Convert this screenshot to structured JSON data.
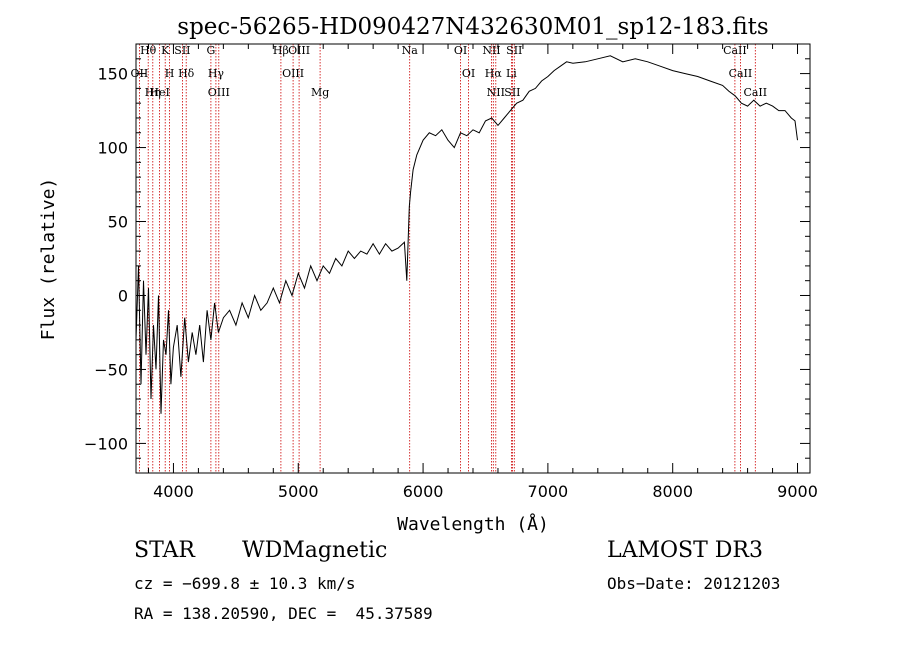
{
  "chart_data": {
    "type": "line",
    "title": "spec-56265-HD090427N432630M01_sp12-183.fits",
    "xlabel": "Wavelength (Å)",
    "ylabel": "Flux (relative)",
    "xlim": [
      3700,
      9100
    ],
    "ylim": [
      -120,
      170
    ],
    "x_ticks": [
      4000,
      5000,
      6000,
      7000,
      8000,
      9000
    ],
    "y_ticks": [
      -100,
      -50,
      0,
      50,
      100,
      150
    ],
    "series": [
      {
        "name": "flux",
        "x": [
          3700,
          3720,
          3740,
          3760,
          3780,
          3800,
          3820,
          3840,
          3860,
          3880,
          3900,
          3920,
          3940,
          3960,
          3980,
          4000,
          4030,
          4060,
          4090,
          4120,
          4150,
          4180,
          4210,
          4240,
          4270,
          4300,
          4330,
          4360,
          4400,
          4450,
          4500,
          4550,
          4600,
          4650,
          4700,
          4750,
          4800,
          4850,
          4900,
          4950,
          5000,
          5050,
          5100,
          5150,
          5200,
          5250,
          5300,
          5350,
          5400,
          5450,
          5500,
          5550,
          5600,
          5650,
          5700,
          5750,
          5800,
          5850,
          5870,
          5890,
          5900,
          5920,
          5950,
          6000,
          6050,
          6100,
          6150,
          6200,
          6250,
          6300,
          6350,
          6400,
          6450,
          6500,
          6550,
          6600,
          6650,
          6700,
          6750,
          6800,
          6850,
          6900,
          6950,
          7000,
          7050,
          7100,
          7150,
          7200,
          7300,
          7400,
          7500,
          7600,
          7700,
          7800,
          7900,
          8000,
          8100,
          8200,
          8300,
          8400,
          8450,
          8500,
          8550,
          8600,
          8650,
          8700,
          8750,
          8800,
          8850,
          8900,
          8950,
          8980,
          9000
        ],
        "values": [
          -30,
          20,
          -60,
          10,
          -40,
          5,
          -70,
          -20,
          -50,
          0,
          -80,
          -30,
          -40,
          -10,
          -60,
          -35,
          -20,
          -55,
          -15,
          -45,
          -25,
          -40,
          -20,
          -45,
          -10,
          -30,
          -5,
          -25,
          -15,
          -10,
          -20,
          -5,
          -15,
          0,
          -10,
          -5,
          5,
          -5,
          10,
          0,
          15,
          5,
          20,
          10,
          20,
          15,
          25,
          20,
          30,
          25,
          30,
          28,
          35,
          28,
          35,
          30,
          32,
          36,
          10,
          60,
          70,
          85,
          95,
          105,
          110,
          108,
          112,
          105,
          100,
          110,
          108,
          112,
          110,
          118,
          120,
          115,
          120,
          125,
          130,
          132,
          138,
          140,
          145,
          148,
          152,
          155,
          158,
          157,
          158,
          160,
          162,
          158,
          160,
          158,
          155,
          152,
          150,
          148,
          145,
          142,
          138,
          135,
          130,
          128,
          132,
          128,
          130,
          128,
          125,
          125,
          120,
          118,
          105
        ]
      }
    ],
    "lines": [
      {
        "name": "Hθ",
        "wavelength": 3798
      },
      {
        "name": "OII",
        "wavelength": 3727
      },
      {
        "name": "Hη",
        "wavelength": 3835
      },
      {
        "name": "HeI",
        "wavelength": 3889
      },
      {
        "name": "K",
        "wavelength": 3934
      },
      {
        "name": "H",
        "wavelength": 3969
      },
      {
        "name": "SII",
        "wavelength": 4072
      },
      {
        "name": "Hδ",
        "wavelength": 4102
      },
      {
        "name": "G",
        "wavelength": 4300
      },
      {
        "name": "Hγ",
        "wavelength": 4340
      },
      {
        "name": "OIII",
        "wavelength": 4363
      },
      {
        "name": "Hβ",
        "wavelength": 4861
      },
      {
        "name": "OIII",
        "wavelength": 4959
      },
      {
        "name": "OIII",
        "wavelength": 5007
      },
      {
        "name": "Mg",
        "wavelength": 5175
      },
      {
        "name": "Na",
        "wavelength": 5893
      },
      {
        "name": "OI",
        "wavelength": 6300
      },
      {
        "name": "OI",
        "wavelength": 6364
      },
      {
        "name": "NII",
        "wavelength": 6548
      },
      {
        "name": "Hα",
        "wavelength": 6563
      },
      {
        "name": "NII",
        "wavelength": 6583
      },
      {
        "name": "Li",
        "wavelength": 6708
      },
      {
        "name": "SII",
        "wavelength": 6716
      },
      {
        "name": "SII",
        "wavelength": 6731
      },
      {
        "name": "CaII",
        "wavelength": 8498
      },
      {
        "name": "CaII",
        "wavelength": 8542
      },
      {
        "name": "CaII",
        "wavelength": 8662
      }
    ]
  },
  "info": {
    "class": "STAR",
    "subclass": "WDMagnetic",
    "survey": "LAMOST DR3",
    "cz": "cz = −699.8 ± 10.3 km/s",
    "obs_date": "Obs−Date: 20121203",
    "radec": "RA = 138.20590, DEC =  45.37589"
  },
  "colors": {
    "axis": "#000000",
    "line_marker": "#cc0000",
    "spectrum": "#000000"
  }
}
